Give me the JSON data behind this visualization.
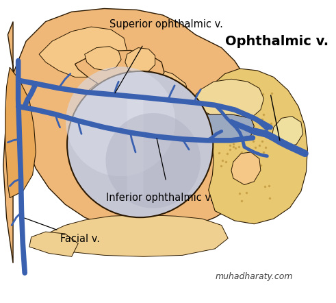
{
  "background_color": "#ffffff",
  "skin_peach": "#f0b878",
  "skin_light": "#f5c888",
  "skin_pale": "#f8ddb0",
  "skin_dark": "#d8954a",
  "bone_color": "#f0d090",
  "vein_color": "#3a60b0",
  "vein_dark": "#2a4888",
  "outline_color": "#2a1800",
  "eye_gray": "#b8bac8",
  "eye_light": "#d0d2e0",
  "eye_highlight": "#e8eaf5",
  "eye_dark": "#9a9cb0",
  "muscle_blue": "#8090b8",
  "watermark": "muhadharaty.com",
  "label_superior": "Superior ophthalmic v.",
  "label_ophthalmic": "Ophthalmic v.",
  "label_inferior": "Inferior ophthalmic v.",
  "label_facial": "Facial v."
}
